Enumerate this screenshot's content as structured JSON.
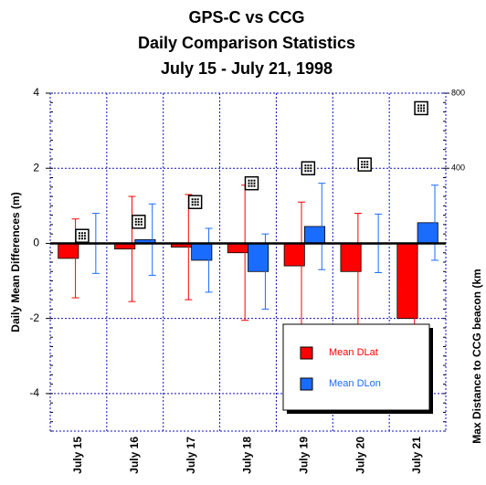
{
  "chart_data": {
    "type": "bar",
    "title": "GPS-C vs CCG",
    "subtitle": "Daily Comparison Statistics",
    "date_range": "July 15 - July 21, 1998",
    "y_label": "Daily Mean Differences (m)",
    "y2_label": "Max Distance to CCG beacon (km",
    "categories": [
      "July 15",
      "July 16",
      "July 17",
      "July 18",
      "July 19",
      "July 20",
      "July 21"
    ],
    "series": [
      {
        "name": "Mean DLat",
        "color": "#ff0000",
        "values": [
          -0.4,
          -0.15,
          -0.1,
          -0.25,
          -0.6,
          -0.75,
          -2.0
        ],
        "errors": [
          1.05,
          1.4,
          1.4,
          1.8,
          1.7,
          1.55,
          1.8
        ]
      },
      {
        "name": "Mean DLon",
        "color": "#1a6cff",
        "values": [
          0,
          0.1,
          -0.45,
          -0.75,
          0.45,
          0,
          0.55
        ],
        "errors": [
          0.8,
          0.95,
          0.85,
          1.0,
          1.15,
          0.78,
          1.0
        ]
      },
      {
        "name": "Max Distance",
        "type": "scatter",
        "axis": "y2",
        "values": [
          40,
          115,
          220,
          320,
          400,
          420,
          720
        ]
      }
    ],
    "ylim": [
      -5,
      4
    ],
    "yticks": [
      -4,
      -2,
      0,
      2,
      4
    ],
    "y2lim": [
      -1000,
      800
    ],
    "y2ticks": [
      400,
      800
    ],
    "grid": true,
    "legend": "lower right"
  }
}
